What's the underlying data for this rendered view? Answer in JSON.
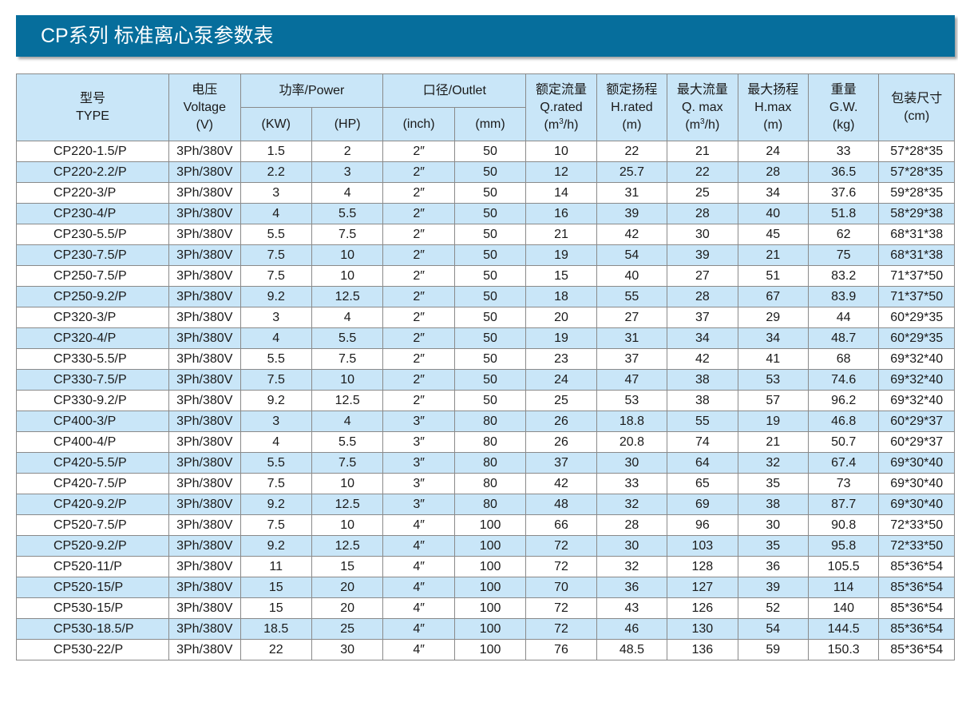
{
  "title": "CP系列 标准离心泵参数表",
  "colors": {
    "title_bar": "#066e9c",
    "header_bg": "#c9e6f8",
    "stripe_bg": "#c9e6f8",
    "border": "#8a8a8a"
  },
  "header": {
    "type": [
      "型号",
      "TYPE"
    ],
    "voltage": [
      "电压",
      "Voltage",
      "(V)"
    ],
    "power": "功率/Power",
    "power_kw": "(KW)",
    "power_hp": "(HP)",
    "outlet": "口径/Outlet",
    "outlet_inch": "(inch)",
    "outlet_mm": "(mm)",
    "q_rated": [
      "额定流量",
      "Q.rated",
      "(m",
      "3",
      "/h)"
    ],
    "h_rated": [
      "额定扬程",
      "H.rated",
      "(m)"
    ],
    "q_max": [
      "最大流量",
      "Q. max",
      "(m",
      "3",
      "/h)"
    ],
    "h_max": [
      "最大扬程",
      "H.max",
      "(m)"
    ],
    "weight": [
      "重量",
      "G.W.",
      "(kg)"
    ],
    "package": [
      "包装尺寸",
      "(cm)"
    ]
  },
  "rows": [
    [
      "CP220-1.5/P",
      "3Ph/380V",
      "1.5",
      "2",
      "2″",
      "50",
      "10",
      "22",
      "21",
      "24",
      "33",
      "57*28*35"
    ],
    [
      "CP220-2.2/P",
      "3Ph/380V",
      "2.2",
      "3",
      "2″",
      "50",
      "12",
      "25.7",
      "22",
      "28",
      "36.5",
      "57*28*35"
    ],
    [
      "CP220-3/P",
      "3Ph/380V",
      "3",
      "4",
      "2″",
      "50",
      "14",
      "31",
      "25",
      "34",
      "37.6",
      "59*28*35"
    ],
    [
      "CP230-4/P",
      "3Ph/380V",
      "4",
      "5.5",
      "2″",
      "50",
      "16",
      "39",
      "28",
      "40",
      "51.8",
      "58*29*38"
    ],
    [
      "CP230-5.5/P",
      "3Ph/380V",
      "5.5",
      "7.5",
      "2″",
      "50",
      "21",
      "42",
      "30",
      "45",
      "62",
      "68*31*38"
    ],
    [
      "CP230-7.5/P",
      "3Ph/380V",
      "7.5",
      "10",
      "2″",
      "50",
      "19",
      "54",
      "39",
      "21",
      "75",
      "68*31*38"
    ],
    [
      "CP250-7.5/P",
      "3Ph/380V",
      "7.5",
      "10",
      "2″",
      "50",
      "15",
      "40",
      "27",
      "51",
      "83.2",
      "71*37*50"
    ],
    [
      "CP250-9.2/P",
      "3Ph/380V",
      "9.2",
      "12.5",
      "2″",
      "50",
      "18",
      "55",
      "28",
      "67",
      "83.9",
      "71*37*50"
    ],
    [
      "CP320-3/P",
      "3Ph/380V",
      "3",
      "4",
      "2″",
      "50",
      "20",
      "27",
      "37",
      "29",
      "44",
      "60*29*35"
    ],
    [
      "CP320-4/P",
      "3Ph/380V",
      "4",
      "5.5",
      "2″",
      "50",
      "19",
      "31",
      "34",
      "34",
      "48.7",
      "60*29*35"
    ],
    [
      "CP330-5.5/P",
      "3Ph/380V",
      "5.5",
      "7.5",
      "2″",
      "50",
      "23",
      "37",
      "42",
      "41",
      "68",
      "69*32*40"
    ],
    [
      "CP330-7.5/P",
      "3Ph/380V",
      "7.5",
      "10",
      "2″",
      "50",
      "24",
      "47",
      "38",
      "53",
      "74.6",
      "69*32*40"
    ],
    [
      "CP330-9.2/P",
      "3Ph/380V",
      "9.2",
      "12.5",
      "2″",
      "50",
      "25",
      "53",
      "38",
      "57",
      "96.2",
      "69*32*40"
    ],
    [
      "CP400-3/P",
      "3Ph/380V",
      "3",
      "4",
      "3″",
      "80",
      "26",
      "18.8",
      "55",
      "19",
      "46.8",
      "60*29*37"
    ],
    [
      "CP400-4/P",
      "3Ph/380V",
      "4",
      "5.5",
      "3″",
      "80",
      "26",
      "20.8",
      "74",
      "21",
      "50.7",
      "60*29*37"
    ],
    [
      "CP420-5.5/P",
      "3Ph/380V",
      "5.5",
      "7.5",
      "3″",
      "80",
      "37",
      "30",
      "64",
      "32",
      "67.4",
      "69*30*40"
    ],
    [
      "CP420-7.5/P",
      "3Ph/380V",
      "7.5",
      "10",
      "3″",
      "80",
      "42",
      "33",
      "65",
      "35",
      "73",
      "69*30*40"
    ],
    [
      "CP420-9.2/P",
      "3Ph/380V",
      "9.2",
      "12.5",
      "3″",
      "80",
      "48",
      "32",
      "69",
      "38",
      "87.7",
      "69*30*40"
    ],
    [
      "CP520-7.5/P",
      "3Ph/380V",
      "7.5",
      "10",
      "4″",
      "100",
      "66",
      "28",
      "96",
      "30",
      "90.8",
      "72*33*50"
    ],
    [
      "CP520-9.2/P",
      "3Ph/380V",
      "9.2",
      "12.5",
      "4″",
      "100",
      "72",
      "30",
      "103",
      "35",
      "95.8",
      "72*33*50"
    ],
    [
      "CP520-11/P",
      "3Ph/380V",
      "11",
      "15",
      "4″",
      "100",
      "72",
      "32",
      "128",
      "36",
      "105.5",
      "85*36*54"
    ],
    [
      "CP520-15/P",
      "3Ph/380V",
      "15",
      "20",
      "4″",
      "100",
      "70",
      "36",
      "127",
      "39",
      "114",
      "85*36*54"
    ],
    [
      "CP530-15/P",
      "3Ph/380V",
      "15",
      "20",
      "4″",
      "100",
      "72",
      "43",
      "126",
      "52",
      "140",
      "85*36*54"
    ],
    [
      "CP530-18.5/P",
      "3Ph/380V",
      "18.5",
      "25",
      "4″",
      "100",
      "72",
      "46",
      "130",
      "54",
      "144.5",
      "85*36*54"
    ],
    [
      "CP530-22/P",
      "3Ph/380V",
      "22",
      "30",
      "4″",
      "100",
      "76",
      "48.5",
      "136",
      "59",
      "150.3",
      "85*36*54"
    ]
  ]
}
